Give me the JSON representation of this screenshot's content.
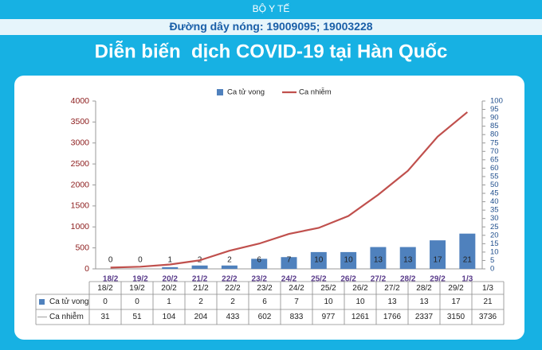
{
  "header": {
    "org": "BỘ Y TẾ",
    "hotline": "Đường dây nóng: 19009095; 19003228"
  },
  "chart_data": {
    "type": "combo",
    "title": "Diễn biến  dịch COVID-19 tại Hàn Quốc",
    "categories": [
      "18/2",
      "19/2",
      "20/2",
      "21/2",
      "22/2",
      "23/2",
      "24/2",
      "25/2",
      "26/2",
      "27/2",
      "28/2",
      "29/2",
      "1/3"
    ],
    "series": [
      {
        "name": "Ca tử vong",
        "type": "bar",
        "axis": "y2",
        "color": "#4f81bd",
        "values": [
          0,
          0,
          1,
          2,
          2,
          6,
          7,
          10,
          10,
          13,
          13,
          17,
          21
        ]
      },
      {
        "name": "Ca nhiễm",
        "type": "line",
        "color": "#c0504d",
        "values": [
          31,
          51,
          104,
          204,
          433,
          602,
          833,
          977,
          1261,
          1766,
          2337,
          3150,
          3736
        ]
      }
    ],
    "ylim": [
      0,
      4000
    ],
    "yticks": [
      0,
      500,
      1000,
      1500,
      2000,
      2500,
      3000,
      3500,
      4000
    ],
    "y2lim": [
      0,
      100
    ],
    "y2ticks": [
      0,
      5,
      10,
      15,
      20,
      25,
      30,
      35,
      40,
      45,
      50,
      55,
      60,
      65,
      70,
      75,
      80,
      85,
      90,
      95,
      100
    ],
    "legend": "top",
    "grid": false
  }
}
